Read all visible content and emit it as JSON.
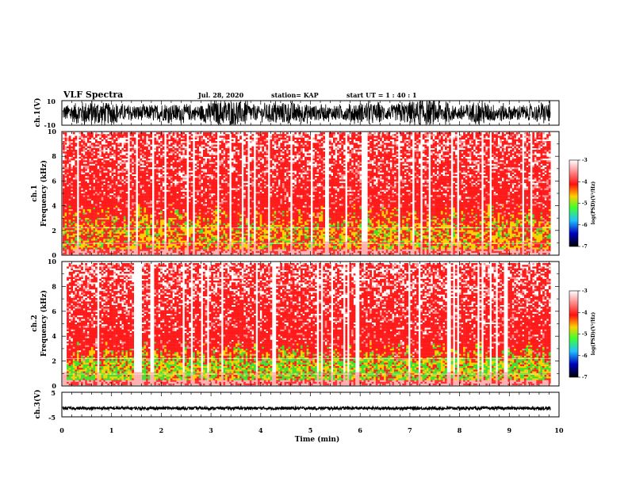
{
  "header": {
    "title": "VLF Spectra",
    "date": "Jul. 28, 2020",
    "station": "station= KAP",
    "start_ut": "start UT =  1 : 40 : 1"
  },
  "colors": {
    "background": "#ffffff",
    "trace": "#000000",
    "colorbar_stops": [
      "#ffffff",
      "#ff2020",
      "#ffd000",
      "#40ff30",
      "#20c0ff",
      "#0000a0",
      "#000000"
    ]
  },
  "chart_data": [
    {
      "id": "ch1-waveform",
      "type": "line",
      "ylabel": "ch.1(V)",
      "ylim": [
        -10,
        10
      ],
      "yticks": [
        "10",
        "-10"
      ],
      "xlim": [
        0,
        10
      ],
      "x_extent": 9.83,
      "style": "dense noise waveform, large amplitude",
      "amplitude": 10
    },
    {
      "id": "ch1-spectrogram",
      "type": "heatmap",
      "ylabel_line1": "ch.1",
      "ylabel_line2": "Frequency (kHz)",
      "ylim": [
        0,
        10
      ],
      "yticks": [
        "0",
        "2",
        "4",
        "6",
        "8",
        "10"
      ],
      "xlim": [
        0,
        10
      ],
      "x_extent": 9.83,
      "colorbar": {
        "label": "log(PSD)(V²/Hz)",
        "range": [
          -7,
          -3
        ],
        "ticks": [
          "-3",
          "-4",
          "-5",
          "-6",
          "-7"
        ]
      },
      "band_top_khz": 3.5
    },
    {
      "id": "ch2-spectrogram",
      "type": "heatmap",
      "ylabel_line1": "ch.2",
      "ylabel_line2": "Frequency (kHz)",
      "ylim": [
        0,
        10
      ],
      "yticks": [
        "0",
        "2",
        "4",
        "6",
        "8",
        "10"
      ],
      "xlim": [
        0,
        10
      ],
      "x_extent": 9.83,
      "colorbar": {
        "label": "log(PSD)(V²/Hz)",
        "range": [
          -7,
          -3
        ],
        "ticks": [
          "-3",
          "-4",
          "-5",
          "-6",
          "-7"
        ]
      },
      "band_top_khz": 3.0
    },
    {
      "id": "ch3-waveform",
      "type": "line",
      "ylabel": "ch.3(V)",
      "ylim": [
        -5,
        5
      ],
      "yticks": [
        "5",
        "-5"
      ],
      "xlim": [
        0,
        10
      ],
      "xticks": [
        "0",
        "1",
        "2",
        "3",
        "4",
        "5",
        "6",
        "7",
        "8",
        "9",
        "10"
      ],
      "xlabel": "Time (min)",
      "x_extent": 9.83,
      "style": "thin dense band near -1.5 V",
      "center": -1.5,
      "amplitude": 0.6
    }
  ]
}
